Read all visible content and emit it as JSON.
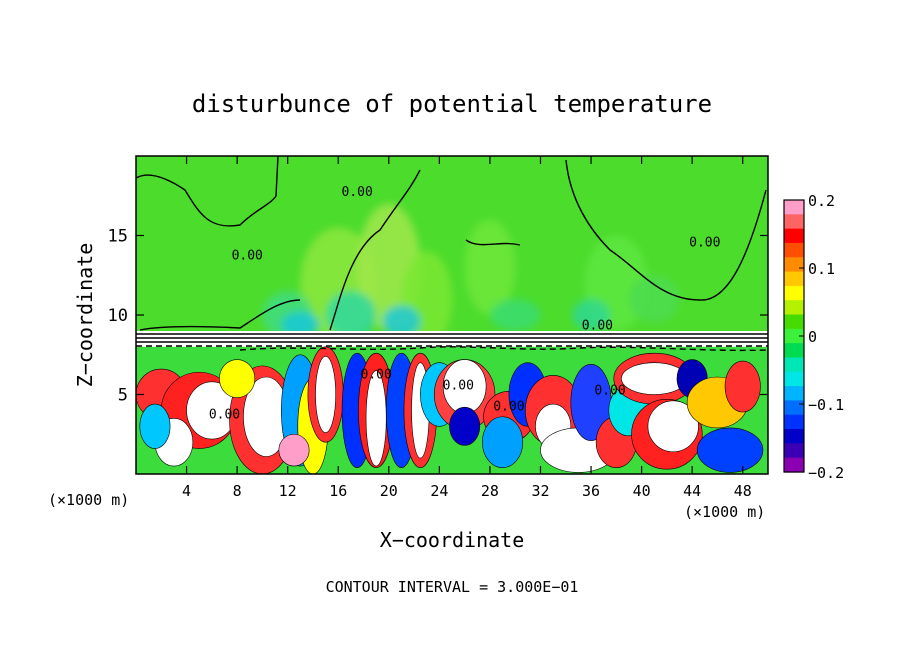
{
  "chart_data": {
    "type": "heatmap",
    "title": "disturbunce of potential temperature",
    "xlabel": "X−coordinate",
    "ylabel": "Z−coordinate",
    "x_unit_left": "(×1000 m)",
    "x_unit_right": "(×1000 m)",
    "footer": "CONTOUR INTERVAL = 3.000E−01",
    "xlim": [
      0,
      50
    ],
    "ylim": [
      0,
      20
    ],
    "x_ticks": [
      4,
      8,
      12,
      16,
      20,
      24,
      28,
      32,
      36,
      40,
      44,
      48
    ],
    "y_ticks": [
      5,
      10,
      15
    ],
    "contour_labels": [
      {
        "text": "0.00",
        "x": 17.5,
        "y": 17.5
      },
      {
        "text": "0.00",
        "x": 8.8,
        "y": 13.5
      },
      {
        "text": "0.00",
        "x": 36.5,
        "y": 9.1
      },
      {
        "text": "0.00",
        "x": 45.0,
        "y": 14.3
      },
      {
        "text": "0.00",
        "x": 19.0,
        "y": 6.0
      },
      {
        "text": "0.00",
        "x": 25.5,
        "y": 5.3
      },
      {
        "text": "0.00",
        "x": 37.5,
        "y": 5.0
      },
      {
        "text": "0.00",
        "x": 7.0,
        "y": 3.5
      },
      {
        "text": "0.00",
        "x": 29.5,
        "y": 4.0
      }
    ],
    "colorbar": {
      "min": -0.2,
      "max": 0.2,
      "ticks": [
        "0.2",
        "0.1",
        "0",
        "−0.1",
        "−0.2"
      ],
      "colors": [
        "#ff9ec8",
        "#ff6464",
        "#ff0000",
        "#ff4e00",
        "#ff8c00",
        "#ffc800",
        "#ffff00",
        "#b4f000",
        "#46dc00",
        "#3cf03c",
        "#00dc50",
        "#00e6b4",
        "#00e6e6",
        "#00b4ff",
        "#006eff",
        "#0032ff",
        "#0000c8",
        "#3c00b4",
        "#8c00b4"
      ]
    },
    "regions": {
      "upper_layer_value": 0.0,
      "inversion_layer_z": [
        8.0,
        8.8
      ],
      "lower_layer_range": [
        -0.2,
        0.2
      ]
    }
  }
}
